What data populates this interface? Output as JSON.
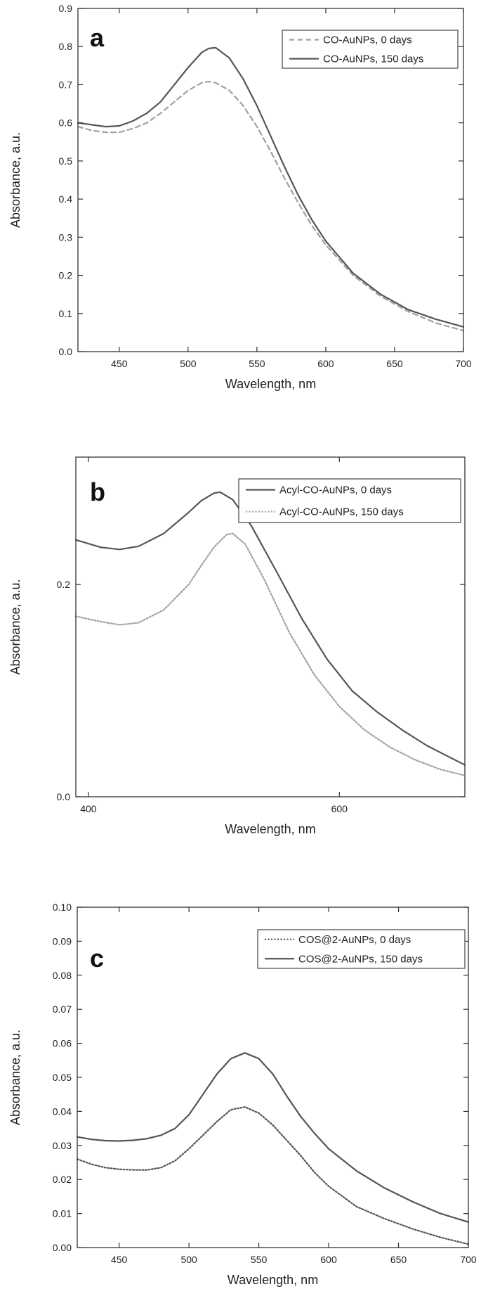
{
  "chart_data": [
    {
      "type": "line",
      "panel_label": "a",
      "xlabel": "Wavelength, nm",
      "ylabel": "Absorbance, a.u.",
      "xlim": [
        420,
        700
      ],
      "ylim": [
        0,
        0.9
      ],
      "xticks": [
        450,
        500,
        550,
        600,
        650,
        700
      ],
      "xtick_labels": [
        "450",
        "500",
        "550",
        "600",
        "650",
        "700"
      ],
      "yticks": [
        0,
        0.1,
        0.2,
        0.3,
        0.4,
        0.5,
        0.6,
        0.7,
        0.8,
        0.9
      ],
      "ytick_labels": [
        "0.0",
        "0.1",
        "0.2",
        "0.3",
        "0.4",
        "0.5",
        "0.6",
        "0.7",
        "0.8",
        "0.9"
      ],
      "grid": false,
      "legend_position": "top-right",
      "series": [
        {
          "name": "CO-AuNPs, 0 days",
          "style": "dashed",
          "color": "#a0a0a0",
          "x": [
            420,
            430,
            440,
            450,
            460,
            470,
            480,
            490,
            500,
            510,
            515,
            520,
            530,
            540,
            550,
            560,
            570,
            580,
            590,
            600,
            620,
            640,
            660,
            680,
            700
          ],
          "y": [
            0.59,
            0.58,
            0.575,
            0.575,
            0.585,
            0.6,
            0.625,
            0.655,
            0.685,
            0.705,
            0.708,
            0.705,
            0.685,
            0.645,
            0.59,
            0.525,
            0.455,
            0.39,
            0.33,
            0.28,
            0.2,
            0.145,
            0.105,
            0.075,
            0.055
          ]
        },
        {
          "name": "CO-AuNPs, 150 days",
          "style": "solid",
          "color": "#555555",
          "x": [
            420,
            430,
            440,
            450,
            460,
            470,
            480,
            490,
            500,
            510,
            515,
            520,
            530,
            540,
            550,
            560,
            570,
            580,
            590,
            600,
            620,
            640,
            660,
            680,
            700
          ],
          "y": [
            0.6,
            0.595,
            0.59,
            0.592,
            0.605,
            0.625,
            0.655,
            0.7,
            0.745,
            0.785,
            0.795,
            0.797,
            0.77,
            0.715,
            0.645,
            0.565,
            0.485,
            0.41,
            0.345,
            0.29,
            0.205,
            0.15,
            0.11,
            0.085,
            0.065
          ]
        }
      ]
    },
    {
      "type": "line",
      "panel_label": "b",
      "xlabel": "Wavelength, nm",
      "ylabel": "Absorbance, a.u.",
      "xlim": [
        390,
        700
      ],
      "ylim": [
        0,
        0.32
      ],
      "xticks": [
        400,
        600
      ],
      "xtick_labels": [
        "400",
        "600"
      ],
      "yticks": [
        0,
        0.2
      ],
      "ytick_labels": [
        "0.0",
        "0.2"
      ],
      "grid": false,
      "legend_position": "top-right",
      "series": [
        {
          "name": "Acyl-CO-AuNPs, 0 days",
          "style": "solid",
          "color": "#555555",
          "x": [
            390,
            410,
            425,
            440,
            460,
            480,
            490,
            500,
            505,
            515,
            530,
            550,
            570,
            590,
            610,
            630,
            650,
            670,
            690,
            700
          ],
          "y": [
            0.242,
            0.235,
            0.233,
            0.236,
            0.248,
            0.268,
            0.279,
            0.286,
            0.287,
            0.28,
            0.255,
            0.212,
            0.168,
            0.13,
            0.1,
            0.08,
            0.063,
            0.048,
            0.036,
            0.03
          ]
        },
        {
          "name": "Acyl-CO-AuNPs, 150 days",
          "style": "dotted",
          "color": "#a0a0a0",
          "x": [
            390,
            410,
            425,
            440,
            460,
            480,
            490,
            500,
            510,
            515,
            525,
            540,
            560,
            580,
            600,
            620,
            640,
            660,
            680,
            700
          ],
          "y": [
            0.17,
            0.165,
            0.162,
            0.164,
            0.176,
            0.2,
            0.218,
            0.235,
            0.247,
            0.248,
            0.238,
            0.205,
            0.155,
            0.115,
            0.085,
            0.063,
            0.047,
            0.035,
            0.026,
            0.02
          ]
        }
      ]
    },
    {
      "type": "line",
      "panel_label": "c",
      "xlabel": "Wavelength, nm",
      "ylabel": "Absorbance, a.u.",
      "xlim": [
        420,
        700
      ],
      "ylim": [
        0,
        0.1
      ],
      "xticks": [
        450,
        500,
        550,
        600,
        650,
        700
      ],
      "xtick_labels": [
        "450",
        "500",
        "550",
        "600",
        "650",
        "700"
      ],
      "yticks": [
        0,
        0.01,
        0.02,
        0.03,
        0.04,
        0.05,
        0.06,
        0.07,
        0.08,
        0.09,
        0.1
      ],
      "ytick_labels": [
        "0.00",
        "0.01",
        "0.02",
        "0.03",
        "0.04",
        "0.05",
        "0.06",
        "0.07",
        "0.08",
        "0.09",
        "0.10"
      ],
      "grid": false,
      "legend_position": "top-right",
      "series": [
        {
          "name": "COS@2-AuNPs, 0 days",
          "style": "dotted",
          "color": "#555555",
          "x": [
            420,
            430,
            440,
            450,
            460,
            470,
            480,
            490,
            500,
            510,
            520,
            530,
            540,
            550,
            560,
            570,
            580,
            590,
            600,
            620,
            640,
            660,
            680,
            700
          ],
          "y": [
            0.026,
            0.0245,
            0.0235,
            0.023,
            0.0228,
            0.0228,
            0.0235,
            0.0255,
            0.029,
            0.033,
            0.037,
            0.0405,
            0.0413,
            0.0395,
            0.036,
            0.0315,
            0.027,
            0.022,
            0.018,
            0.012,
            0.0085,
            0.0055,
            0.003,
            0.001
          ]
        },
        {
          "name": "COS@2-AuNPs, 150 days",
          "style": "solid",
          "color": "#555555",
          "x": [
            420,
            430,
            440,
            450,
            460,
            470,
            480,
            490,
            500,
            510,
            520,
            530,
            540,
            550,
            560,
            570,
            580,
            590,
            600,
            620,
            640,
            660,
            680,
            700
          ],
          "y": [
            0.0325,
            0.0318,
            0.0314,
            0.0313,
            0.0315,
            0.032,
            0.033,
            0.035,
            0.039,
            0.045,
            0.051,
            0.0555,
            0.0572,
            0.0555,
            0.051,
            0.0445,
            0.0385,
            0.0335,
            0.029,
            0.0225,
            0.0175,
            0.0135,
            0.01,
            0.0075
          ]
        }
      ]
    }
  ]
}
